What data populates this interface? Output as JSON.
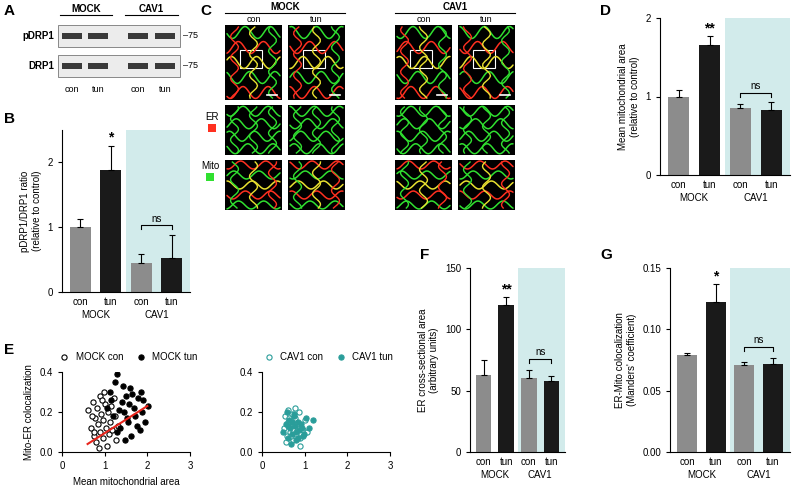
{
  "images": [
    {
      "panel": "A",
      "type": "western_blot",
      "groups": [
        "MOCK",
        "CAV1"
      ],
      "lanes": [
        "con",
        "tun",
        "con",
        "tun"
      ],
      "rows": [
        "pDRP1",
        "DRP1"
      ],
      "size_label": "–75"
    },
    {
      "panel": "C",
      "type": "micrograph",
      "groups": [
        "MOCK",
        "CAV1"
      ],
      "lanes": [
        "con",
        "tun",
        "con",
        "tun"
      ],
      "channels": [
        {
          "name": "ER",
          "color": "#ff3020"
        },
        {
          "name": "Mito",
          "color": "#30e030"
        }
      ]
    }
  ],
  "chart_data": [
    {
      "panel": "B",
      "type": "bar",
      "categories": [
        "con",
        "tun",
        "con",
        "tun"
      ],
      "values": [
        1.0,
        1.88,
        0.45,
        0.53
      ],
      "errors": [
        0.12,
        0.38,
        0.13,
        0.35
      ],
      "colors": [
        "#8c8c8c",
        "#1a1a1a",
        "#8c8c8c",
        "#1a1a1a"
      ],
      "y_label": "pDRP1/DRP1 ratio\n(relative to control)",
      "ylim": [
        0,
        2.5
      ],
      "yticks": [
        0,
        1,
        2
      ],
      "groups": [
        {
          "label": "MOCK",
          "categories": [
            0,
            1
          ]
        },
        {
          "label": "CAV1",
          "categories": [
            2,
            3
          ],
          "color": "#d2ebeb"
        }
      ],
      "annotations": [
        {
          "text": "*",
          "categories": [
            1
          ]
        },
        {
          "text": "ns",
          "categories": [
            2,
            3
          ]
        }
      ]
    },
    {
      "panel": "D",
      "type": "bar",
      "categories": [
        "con",
        "tun",
        "con",
        "tun"
      ],
      "values": [
        1.0,
        1.65,
        0.85,
        0.83
      ],
      "errors": [
        0.08,
        0.12,
        0.06,
        0.1
      ],
      "colors": [
        "#8c8c8c",
        "#1a1a1a",
        "#8c8c8c",
        "#1a1a1a"
      ],
      "y_label": "Mean mitochondrial area\n(relative to control)",
      "ylim": [
        0,
        2
      ],
      "yticks": [
        0,
        1,
        2
      ],
      "groups": [
        {
          "label": "MOCK",
          "categories": [
            0,
            1
          ]
        },
        {
          "label": "CAV1",
          "categories": [
            2,
            3
          ],
          "color": "#d2ebeb"
        }
      ],
      "annotations": [
        {
          "text": "**",
          "categories": [
            1
          ]
        },
        {
          "text": "ns",
          "categories": [
            2,
            3
          ]
        }
      ]
    },
    {
      "panel": "E",
      "type": "scatter",
      "x_label": "Mean mitochondrial area",
      "y_label": "Mito-ER colocalization",
      "xlim": [
        0,
        3
      ],
      "ylim": [
        0.0,
        0.4
      ],
      "xticks": [
        0,
        1,
        2,
        3
      ],
      "yticks": [
        0.0,
        0.2,
        0.4
      ],
      "legend": "upper center",
      "series": [
        {
          "name": "MOCK con",
          "color": "#000000",
          "marker": "open_circle",
          "x": [
            0.62,
            0.68,
            0.72,
            0.75,
            0.78,
            0.8,
            0.83,
            0.85,
            0.88,
            0.9,
            0.92,
            0.95,
            0.97,
            1.0,
            1.02,
            1.05,
            1.08,
            1.1,
            1.13,
            1.18,
            1.22,
            1.27,
            1.32,
            0.7,
            0.87,
            0.99,
            1.15,
            0.76,
            0.93,
            1.25
          ],
          "y": [
            0.21,
            0.12,
            0.25,
            0.08,
            0.17,
            0.05,
            0.22,
            0.14,
            0.28,
            0.1,
            0.19,
            0.07,
            0.16,
            0.24,
            0.12,
            0.03,
            0.2,
            0.09,
            0.15,
            0.11,
            0.27,
            0.06,
            0.13,
            0.18,
            0.02,
            0.3,
            0.23,
            0.1,
            0.26,
            0.18
          ]
        },
        {
          "name": "MOCK tun",
          "color": "#000000",
          "marker": "circle",
          "x": [
            1.05,
            1.12,
            1.2,
            1.25,
            1.3,
            1.35,
            1.4,
            1.45,
            1.5,
            1.55,
            1.6,
            1.62,
            1.68,
            1.72,
            1.78,
            1.82,
            1.88,
            1.95,
            2.02,
            1.15,
            1.28,
            1.42,
            1.52,
            1.65,
            1.75,
            1.9,
            1.33,
            1.48,
            1.58,
            1.85
          ],
          "y": [
            0.22,
            0.3,
            0.18,
            0.35,
            0.39,
            0.12,
            0.25,
            0.2,
            0.28,
            0.15,
            0.32,
            0.08,
            0.22,
            0.18,
            0.27,
            0.11,
            0.2,
            0.15,
            0.23,
            0.26,
            0.1,
            0.33,
            0.17,
            0.29,
            0.13,
            0.26,
            0.21,
            0.06,
            0.24,
            0.3
          ]
        },
        {
          "type": "line",
          "color": "#e8251c",
          "x": [
            0.6,
            2.0
          ],
          "y": [
            0.04,
            0.23
          ]
        }
      ]
    },
    {
      "type": "scatter",
      "xlim": [
        0,
        3
      ],
      "ylim": [
        0.0,
        0.4
      ],
      "xticks": [
        0,
        1,
        2,
        3
      ],
      "yticks": [
        0.0,
        0.2,
        0.4
      ],
      "legend": "upper center",
      "series": [
        {
          "name": "CAV1 con",
          "color": "#2a9d9a",
          "marker": "open_circle",
          "x": [
            0.52,
            0.55,
            0.58,
            0.6,
            0.62,
            0.65,
            0.68,
            0.7,
            0.72,
            0.75,
            0.78,
            0.8,
            0.83,
            0.86,
            0.9,
            0.95,
            1.0,
            1.05,
            0.57,
            0.64,
            0.73,
            0.82,
            0.88,
            0.67,
            0.77
          ],
          "y": [
            0.12,
            0.18,
            0.08,
            0.15,
            0.21,
            0.1,
            0.13,
            0.19,
            0.06,
            0.14,
            0.17,
            0.09,
            0.12,
            0.2,
            0.07,
            0.11,
            0.16,
            0.1,
            0.05,
            0.17,
            0.11,
            0.14,
            0.03,
            0.08,
            0.22
          ]
        },
        {
          "name": "CAV1 tun",
          "color": "#2a9d9a",
          "marker": "circle",
          "x": [
            0.5,
            0.56,
            0.6,
            0.63,
            0.66,
            0.7,
            0.74,
            0.77,
            0.8,
            0.84,
            0.87,
            0.91,
            0.96,
            1.02,
            1.1,
            1.2,
            0.59,
            0.69,
            0.79,
            0.93,
            0.71,
            0.85,
            0.62,
            0.76,
            0.99
          ],
          "y": [
            0.1,
            0.14,
            0.07,
            0.16,
            0.12,
            0.09,
            0.18,
            0.13,
            0.06,
            0.15,
            0.11,
            0.14,
            0.08,
            0.17,
            0.12,
            0.16,
            0.2,
            0.04,
            0.1,
            0.12,
            0.15,
            0.07,
            0.13,
            0.19,
            0.09
          ]
        }
      ]
    },
    {
      "panel": "F",
      "type": "bar",
      "categories": [
        "con",
        "tun",
        "con",
        "tun"
      ],
      "values": [
        63,
        120,
        60,
        58
      ],
      "errors": [
        12,
        6,
        7,
        4
      ],
      "colors": [
        "#8c8c8c",
        "#1a1a1a",
        "#8c8c8c",
        "#1a1a1a"
      ],
      "y_label": "ER cross-sectional area\n(arbitrary units)",
      "ylim": [
        0,
        150
      ],
      "yticks": [
        0,
        50,
        100,
        150
      ],
      "groups": [
        {
          "label": "MOCK",
          "categories": [
            0,
            1
          ]
        },
        {
          "label": "CAV1",
          "categories": [
            2,
            3
          ],
          "color": "#d2ebeb"
        }
      ],
      "annotations": [
        {
          "text": "**",
          "categories": [
            1
          ]
        },
        {
          "text": "ns",
          "categories": [
            2,
            3
          ]
        }
      ]
    },
    {
      "panel": "G",
      "type": "bar",
      "categories": [
        "con",
        "tun",
        "con",
        "tun"
      ],
      "values": [
        0.079,
        0.122,
        0.071,
        0.072
      ],
      "errors": [
        0.002,
        0.015,
        0.002,
        0.005
      ],
      "colors": [
        "#8c8c8c",
        "#1a1a1a",
        "#8c8c8c",
        "#1a1a1a"
      ],
      "y_label": "ER-Mito colocalization\n(Manders' coefficient)",
      "ylim": [
        0.0,
        0.15
      ],
      "yticks": [
        {
          "value": 0.0,
          "label": "0.00"
        },
        {
          "value": 0.05,
          "label": "0.05"
        },
        {
          "value": 0.1,
          "label": "0.10"
        },
        {
          "value": 0.15,
          "label": "0.15"
        }
      ],
      "groups": [
        {
          "label": "MOCK",
          "categories": [
            0,
            1
          ]
        },
        {
          "label": "CAV1",
          "categories": [
            2,
            3
          ],
          "color": "#d2ebeb"
        }
      ],
      "annotations": [
        {
          "text": "*",
          "categories": [
            1
          ]
        },
        {
          "text": "ns",
          "categories": [
            2,
            3
          ]
        }
      ]
    }
  ]
}
